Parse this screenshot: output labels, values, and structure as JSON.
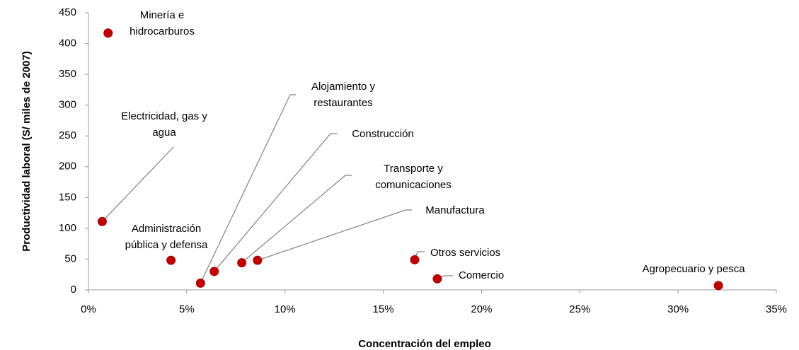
{
  "chart_data": {
    "type": "scatter",
    "xlabel": "Concentración del empleo",
    "ylabel": "Productividad laboral (S/ miles de 2007)",
    "color": "#c00000",
    "x": [
      1.0,
      0.7,
      4.2,
      5.7,
      6.4,
      7.8,
      8.6,
      16.6,
      17.75,
      32.05
    ],
    "values": [
      417,
      111,
      48,
      11,
      30,
      44,
      48,
      49,
      18,
      7
    ],
    "labels": [
      [
        "Minería e",
        "hidrocarburos"
      ],
      [
        "Electricidad, gas y",
        "agua"
      ],
      [
        "Administración",
        "pública y defensa"
      ],
      [
        "Alojamiento y",
        "restaurantes"
      ],
      [
        "Construcción"
      ],
      [
        "Transporte y",
        "comunicaciones"
      ],
      [
        "Manufactura"
      ],
      [
        "Otros servicios"
      ],
      [
        "Comercio"
      ],
      [
        "Agropecuario y pesca"
      ]
    ],
    "xlim": [
      0,
      35
    ],
    "xticks": [
      {
        "value": 0,
        "label": "0%"
      },
      {
        "value": 5,
        "label": "5%"
      },
      {
        "value": 10,
        "label": "10%"
      },
      {
        "value": 15,
        "label": "15%"
      },
      {
        "value": 20,
        "label": "20%"
      },
      {
        "value": 25,
        "label": "25%"
      },
      {
        "value": 30,
        "label": "30%"
      },
      {
        "value": 35,
        "label": "35%"
      }
    ],
    "ylim": [
      0,
      450
    ],
    "yticks": [
      0,
      50,
      100,
      150,
      200,
      250,
      300,
      350,
      400,
      450
    ],
    "grid": false
  }
}
